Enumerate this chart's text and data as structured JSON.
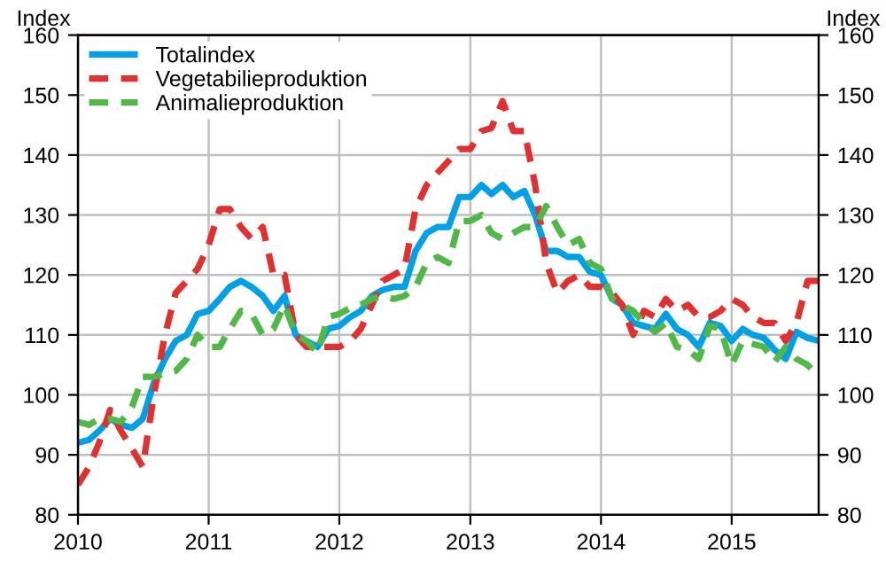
{
  "chart_data": {
    "type": "line",
    "ylabel": "Index",
    "y2label": "Index",
    "x": [
      "2010-01",
      "2010-02",
      "2010-03",
      "2010-04",
      "2010-05",
      "2010-06",
      "2010-07",
      "2010-08",
      "2010-09",
      "2010-10",
      "2010-11",
      "2010-12",
      "2011-01",
      "2011-02",
      "2011-03",
      "2011-04",
      "2011-05",
      "2011-06",
      "2011-07",
      "2011-08",
      "2011-09",
      "2011-10",
      "2011-11",
      "2011-12",
      "2012-01",
      "2012-02",
      "2012-03",
      "2012-04",
      "2012-05",
      "2012-06",
      "2012-07",
      "2012-08",
      "2012-09",
      "2012-10",
      "2012-11",
      "2012-12",
      "2013-01",
      "2013-02",
      "2013-03",
      "2013-04",
      "2013-05",
      "2013-06",
      "2013-07",
      "2013-08",
      "2013-09",
      "2013-10",
      "2013-11",
      "2013-12",
      "2014-01",
      "2014-02",
      "2014-03",
      "2014-04",
      "2014-05",
      "2014-06",
      "2014-07",
      "2014-08",
      "2014-09",
      "2014-10",
      "2014-11",
      "2014-12",
      "2015-01",
      "2015-02",
      "2015-03",
      "2015-04",
      "2015-05",
      "2015-06",
      "2015-07",
      "2015-08",
      "2015-09"
    ],
    "series": [
      {
        "name": "Totalindex",
        "color": "#00a0e6",
        "line_style": "solid",
        "values": [
          92,
          92.5,
          94,
          96,
          95,
          94.5,
          96,
          102,
          106,
          109,
          110,
          113.5,
          114,
          116,
          118,
          119,
          118,
          116.5,
          114,
          116.5,
          110,
          109,
          108,
          111,
          111.5,
          113,
          114,
          116.5,
          117.5,
          118,
          118,
          124,
          127,
          128,
          128,
          133,
          133,
          135,
          133.5,
          135,
          133,
          134,
          130,
          124,
          124,
          123,
          123,
          120.5,
          120,
          116,
          115,
          112,
          111.5,
          111,
          113.5,
          111,
          110,
          108,
          112,
          111.5,
          109,
          111,
          110,
          109.5,
          107.5,
          106,
          110.5,
          109.5,
          109
        ]
      },
      {
        "name": "Vegetabilieproduktion",
        "color": "#e03030",
        "line_style": "dashed",
        "values": [
          85,
          88,
          92,
          97.5,
          94,
          91,
          88,
          100,
          110,
          117,
          119,
          121,
          125,
          131,
          131,
          128,
          126,
          128,
          120,
          120,
          110,
          108,
          108,
          108,
          108,
          109,
          111,
          115,
          119,
          120,
          121,
          131,
          135,
          137,
          139,
          141,
          141,
          144,
          144.5,
          149,
          144,
          144,
          135,
          122,
          117,
          119,
          120,
          118,
          118,
          117,
          115,
          110,
          114,
          113,
          116,
          114,
          115,
          113,
          113,
          114,
          116,
          115,
          113,
          112,
          112,
          109,
          112,
          119,
          119
        ]
      },
      {
        "name": "Animalieproduktion",
        "color": "#50b848",
        "line_style": "dashed",
        "values": [
          95.5,
          95,
          96,
          96,
          95.5,
          98,
          103,
          103,
          103.5,
          104,
          106,
          110,
          108,
          108,
          111,
          114,
          113.5,
          110,
          111,
          115,
          110,
          109,
          107,
          113,
          113.5,
          114.5,
          115,
          116,
          116.5,
          116,
          116.5,
          118,
          122,
          123,
          122,
          129,
          129,
          130,
          127,
          126,
          127,
          128,
          128,
          131.5,
          128,
          125,
          126,
          122,
          121,
          116,
          115,
          114,
          112,
          110.5,
          112,
          108,
          107.5,
          106,
          111.5,
          111,
          105,
          109,
          108.5,
          108,
          105.5,
          108,
          106,
          105,
          103
        ]
      }
    ],
    "xlim": [
      "2010-01",
      "2015-09"
    ],
    "xticks": [
      {
        "value": "2010-01",
        "label": "2010"
      },
      {
        "value": "2011-01",
        "label": "2011"
      },
      {
        "value": "2012-01",
        "label": "2012"
      },
      {
        "value": "2013-01",
        "label": "2013"
      },
      {
        "value": "2014-01",
        "label": "2014"
      },
      {
        "value": "2015-01",
        "label": "2015"
      }
    ],
    "ylim": [
      80,
      160
    ],
    "yticks": [
      80,
      90,
      100,
      110,
      120,
      130,
      140,
      150,
      160
    ],
    "y2lim": [
      80,
      160
    ],
    "y2ticks": [
      80,
      90,
      100,
      110,
      120,
      130,
      140,
      150,
      160
    ],
    "grid": true,
    "legend": "top left"
  }
}
